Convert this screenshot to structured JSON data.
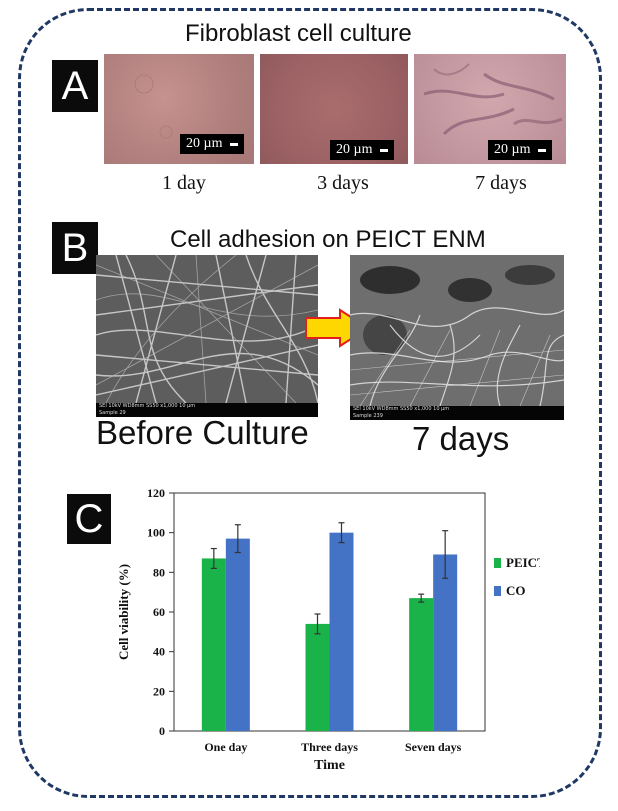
{
  "panel_a": {
    "letter": "A",
    "title": "Fibroblast cell culture",
    "scale_label": "20 µm",
    "captions": [
      "1 day",
      "3 days",
      "7 days"
    ]
  },
  "panel_b": {
    "letter": "B",
    "title": "Cell adhesion on PEICT ENM",
    "before_label": "Before Culture",
    "after_label": "7 days",
    "sem_info_1": "SEI   10kV   WD8mm   SS50        x1,000      10 µm",
    "sem_info_2": "Sample                                                          29",
    "sem_info_3": "SEI   10kV   WD8mm   SS50        x1,000      10 µm",
    "sem_info_4": "Sample                                                          239"
  },
  "panel_c": {
    "letter": "C"
  },
  "colors": {
    "frame": "#1f3864",
    "peict": "#19b34a",
    "co": "#4472c4",
    "arrow_fill": "#ffd700",
    "arrow_edge": "#e0201b"
  },
  "chart_data": {
    "type": "bar",
    "categories": [
      "One day",
      "Three days",
      "Seven days"
    ],
    "series": [
      {
        "name": "PEICT",
        "values": [
          87,
          54,
          67
        ],
        "errors": [
          5,
          5,
          2
        ],
        "color": "#19b34a"
      },
      {
        "name": "CO",
        "values": [
          97,
          100,
          89
        ],
        "errors": [
          7,
          5,
          12
        ],
        "color": "#4472c4"
      }
    ],
    "xlabel": "Time",
    "ylabel": "Cell viability (%)",
    "ylim": [
      0,
      120
    ],
    "yticks": [
      0,
      20,
      40,
      60,
      80,
      100,
      120
    ],
    "legend_position": "right",
    "grid": false
  }
}
